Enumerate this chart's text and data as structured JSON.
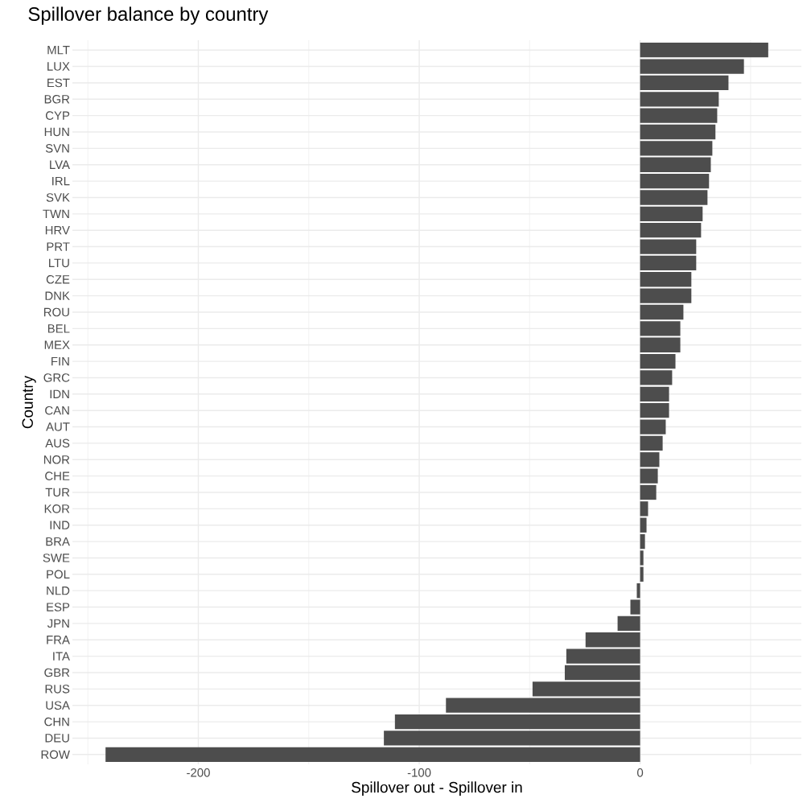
{
  "chart_data": {
    "type": "bar",
    "orientation": "horizontal",
    "title": "Spillover balance by country",
    "xlabel": "Spillover out - Spillover in",
    "ylabel": "Country",
    "categories": [
      "MLT",
      "LUX",
      "EST",
      "BGR",
      "CYP",
      "HUN",
      "SVN",
      "LVA",
      "IRL",
      "SVK",
      "TWN",
      "HRV",
      "PRT",
      "LTU",
      "CZE",
      "DNK",
      "ROU",
      "BEL",
      "MEX",
      "FIN",
      "GRC",
      "IDN",
      "CAN",
      "AUT",
      "AUS",
      "NOR",
      "CHE",
      "TUR",
      "KOR",
      "IND",
      "BRA",
      "SWE",
      "POL",
      "NLD",
      "ESP",
      "JPN",
      "FRA",
      "ITA",
      "GBR",
      "RUS",
      "USA",
      "CHN",
      "DEU",
      "ROW"
    ],
    "values": [
      58,
      47,
      40,
      35.6,
      34.9,
      34.1,
      32.7,
      32,
      31.2,
      30.5,
      28.3,
      27.6,
      25.4,
      25.4,
      23.2,
      23.2,
      19.6,
      18.2,
      18.2,
      16,
      14.5,
      13.1,
      13.1,
      11.6,
      10.2,
      8.7,
      8,
      7.3,
      3.6,
      2.9,
      2.2,
      1.5,
      1.5,
      -1.5,
      -4.4,
      -10.2,
      -24.7,
      -33.4,
      -34.1,
      -48.7,
      -87.9,
      -111,
      -116,
      -242
    ],
    "color": "#4d4d4d",
    "xlim": [
      -257,
      73
    ],
    "xticks": [
      {
        "value": -250,
        "label": null
      },
      -200,
      {
        "value": -150,
        "label": null
      },
      -100,
      {
        "value": -50,
        "label": null
      },
      0,
      {
        "value": 50,
        "label": null
      }
    ],
    "grid": true
  }
}
